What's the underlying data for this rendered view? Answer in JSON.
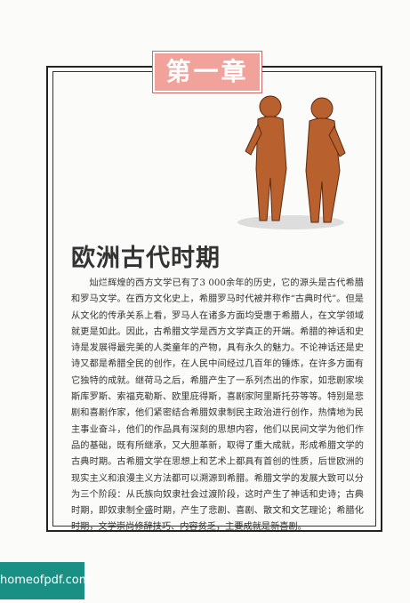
{
  "chapter": "第一章",
  "title": "欧洲古代时期",
  "paragraph": "灿烂辉煌的西方文学已有了3 000余年的历史，它的源头是古代希腊和罗马文学。在西方文化史上，希腊罗马时代被并称作“古典时代”。但是从文化的传承关系上看，罗马人在诸多方面均受惠于希腊人，在文学领域就更是如此。因此，古希腊文学是西方文学真正的开端。希腊的神话和史诗是发展得最完美的人类童年的产物，具有永久的魅力。不论神话还是史诗又都是希腊全民的创作，在人民中间经过几百年的锤炼，在许多方面有它独特的成就。继荷马之后，希腊产生了一系列杰出的作家，如悲剧家埃斯库罗斯、索福克勒斯、欧里庇得斯，喜剧家阿里斯托芬等等。特别是悲剧和喜剧作家，他们紧密结合希腊奴隶制民主政治进行创作，热情地为民主事业奋斗，他们的作品具有深刻的思想内容，他们以民间文学为他们作品的基础，既有所继承，又大胆革新，取得了重大成就，形成希腊文学的古典时期。古希腊文学在思想上和艺术上都具有首创的性质，后世欧洲的现实主义和浪漫主义方法都可以溯源到希腊。希腊文学的发展大致可以分为三个阶段：从氏族向奴隶社会过渡阶段，这时产生了神话和史诗；古典时期，即奴隶制全盛时期，产生了悲剧、喜剧、散文和文艺理论；希腊化时期，文学崇尚修辞技巧、内容贫乏，主要成就是新喜剧。",
  "watermark": "homeofpdf.com"
}
